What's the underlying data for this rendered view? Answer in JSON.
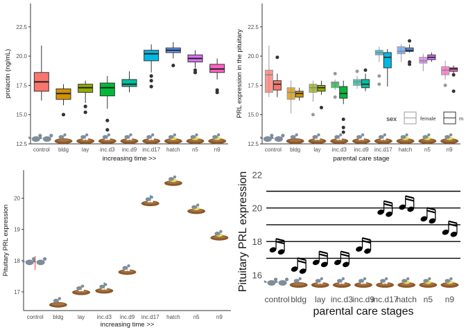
{
  "chart_data": [
    {
      "type": "box",
      "title": "",
      "xlabel": "increasing time >>",
      "ylabel": "prolactin (ng/mL)",
      "categories": [
        "control",
        "bldg",
        "lay",
        "inc.d3",
        "inc.d9",
        "inc.d17",
        "hatch",
        "n5",
        "n9"
      ],
      "ylim": [
        12.5,
        24.5
      ],
      "yticks": [
        12.5,
        15.0,
        17.5,
        20.0,
        22.5
      ],
      "yticklabels": [
        "12.5",
        "15.0",
        "17.5",
        "20.0",
        "22.5"
      ],
      "colors": [
        "#F8766D",
        "#D39200",
        "#93AA00",
        "#00BA38",
        "#00C19F",
        "#00B9E3",
        "#619CFF",
        "#DB72FB",
        "#FF61C3"
      ],
      "boxes": [
        {
          "q1": 17.0,
          "median": 17.8,
          "q3": 18.6,
          "whisker_low": 16.2,
          "whisker_high": 20.9,
          "outliers": []
        },
        {
          "q1": 16.3,
          "median": 16.8,
          "q3": 17.2,
          "whisker_low": 15.8,
          "whisker_high": 17.6,
          "outliers": [
            15.0
          ]
        },
        {
          "q1": 16.9,
          "median": 17.3,
          "q3": 17.6,
          "whisker_low": 16.0,
          "whisker_high": 17.9,
          "outliers": [
            15.7,
            15.2
          ]
        },
        {
          "q1": 16.6,
          "median": 17.3,
          "q3": 17.7,
          "whisker_low": 15.5,
          "whisker_high": 18.3,
          "outliers": [
            14.5,
            13.7
          ]
        },
        {
          "q1": 17.4,
          "median": 17.6,
          "q3": 18.0,
          "whisker_low": 16.9,
          "whisker_high": 18.7,
          "outliers": []
        },
        {
          "q1": 19.6,
          "median": 20.2,
          "q3": 20.5,
          "whisker_low": 18.6,
          "whisker_high": 21.0,
          "outliers": [
            18.3,
            17.9,
            17.4
          ]
        },
        {
          "q1": 20.3,
          "median": 20.5,
          "q3": 20.7,
          "whisker_low": 19.8,
          "whisker_high": 21.2,
          "outliers": [
            19.2
          ]
        },
        {
          "q1": 19.5,
          "median": 19.8,
          "q3": 20.1,
          "whisker_low": 19.0,
          "whisker_high": 20.5,
          "outliers": [
            18.8,
            18.6
          ]
        },
        {
          "q1": 18.6,
          "median": 18.9,
          "q3": 19.3,
          "whisker_low": 18.0,
          "whisker_high": 19.8,
          "outliers": [
            17.1,
            16.9
          ]
        }
      ]
    },
    {
      "type": "box",
      "title": "",
      "xlabel": "parental care stage",
      "ylabel": "PRL expression in the pituitary",
      "categories": [
        "control",
        "bldg",
        "lay",
        "inc.d3",
        "inc.d9",
        "inc.d17",
        "hatch",
        "n5",
        "n9"
      ],
      "ylim": [
        12.5,
        24.5
      ],
      "yticks": [
        12.5,
        15.0,
        17.5,
        20.0,
        22.5
      ],
      "yticklabels": [
        "12.5",
        "15.0",
        "17.5",
        "20.0",
        "22.5"
      ],
      "legend": {
        "title": "sex",
        "entries": [
          "female",
          "m"
        ],
        "position": "right"
      },
      "series": [
        {
          "name": "female",
          "boxes": [
            {
              "q1": 16.9,
              "median": 18.4,
              "q3": 18.8,
              "whisker_low": 16.5,
              "whisker_high": 20.9,
              "outliers": []
            },
            {
              "q1": 16.3,
              "median": 16.9,
              "q3": 17.3,
              "whisker_low": 15.1,
              "whisker_high": 17.9,
              "outliers": []
            },
            {
              "q1": 16.9,
              "median": 17.3,
              "q3": 17.6,
              "whisker_low": 16.1,
              "whisker_high": 17.9,
              "outliers": [
                15.0
              ]
            },
            {
              "q1": 17.3,
              "median": 17.7,
              "q3": 17.8,
              "whisker_low": 17.1,
              "whisker_high": 18.0,
              "outliers": [
                18.5,
                16.5
              ]
            },
            {
              "q1": 17.5,
              "median": 17.8,
              "q3": 18.0,
              "whisker_low": 17.2,
              "whisker_high": 18.3,
              "outliers": [
                18.7
              ]
            },
            {
              "q1": 20.1,
              "median": 20.3,
              "q3": 20.5,
              "whisker_low": 19.5,
              "whisker_high": 20.8,
              "outliers": [
                18.3,
                17.6
              ]
            },
            {
              "q1": 20.2,
              "median": 20.4,
              "q3": 20.8,
              "whisker_low": 19.5,
              "whisker_high": 21.0,
              "outliers": []
            },
            {
              "q1": 19.4,
              "median": 19.6,
              "q3": 19.9,
              "whisker_low": 18.7,
              "whisker_high": 20.2,
              "outliers": []
            },
            {
              "q1": 18.4,
              "median": 18.8,
              "q3": 19.1,
              "whisker_low": 18.0,
              "whisker_high": 19.6,
              "outliers": [
                17.5
              ]
            }
          ]
        },
        {
          "name": "m",
          "boxes": [
            {
              "q1": 17.1,
              "median": 17.6,
              "q3": 17.9,
              "whisker_low": 16.5,
              "whisker_high": 18.5,
              "outliers": [
                19.9
              ]
            },
            {
              "q1": 16.5,
              "median": 16.8,
              "q3": 17.0,
              "whisker_low": 16.2,
              "whisker_high": 17.3,
              "outliers": []
            },
            {
              "q1": 17.0,
              "median": 17.3,
              "q3": 17.5,
              "whisker_low": 16.7,
              "whisker_high": 17.9,
              "outliers": [
                15.6
              ]
            },
            {
              "q1": 16.4,
              "median": 16.8,
              "q3": 17.4,
              "whisker_low": 15.9,
              "whisker_high": 17.9,
              "outliers": [
                14.6,
                13.9,
                13.5
              ]
            },
            {
              "q1": 17.3,
              "median": 17.6,
              "q3": 18.0,
              "whisker_low": 17.0,
              "whisker_high": 18.5,
              "outliers": [
                18.8
              ]
            },
            {
              "q1": 19.0,
              "median": 19.9,
              "q3": 20.3,
              "whisker_low": 17.4,
              "whisker_high": 20.6,
              "outliers": []
            },
            {
              "q1": 20.4,
              "median": 20.5,
              "q3": 20.7,
              "whisker_low": 20.3,
              "whisker_high": 21.0,
              "outliers": [
                21.3,
                19.5,
                19.3
              ]
            },
            {
              "q1": 19.7,
              "median": 19.9,
              "q3": 20.1,
              "whisker_low": 19.5,
              "whisker_high": 20.3,
              "outliers": []
            },
            {
              "q1": 18.7,
              "median": 18.9,
              "q3": 19.0,
              "whisker_low": 18.4,
              "whisker_high": 19.2,
              "outliers": [
                18.4,
                17.0
              ]
            }
          ]
        }
      ]
    },
    {
      "type": "scatter",
      "title": "",
      "xlabel": "increasing time >>",
      "ylabel": "Pituitary PRL expression",
      "categories": [
        "control",
        "bldg",
        "lay",
        "inc.d3",
        "inc.d9",
        "inc.d17",
        "hatch",
        "n5",
        "n9"
      ],
      "ylim": [
        16.4,
        20.9
      ],
      "yticks": [
        17,
        18,
        19,
        20
      ],
      "yticklabels": [
        "17",
        "18",
        "19",
        "20"
      ],
      "values": [
        17.9,
        16.65,
        17.05,
        17.1,
        17.7,
        19.9,
        20.55,
        19.65,
        18.8
      ],
      "error_low": [
        17.7,
        16.6,
        16.95,
        16.95,
        17.65,
        19.75,
        20.5,
        19.6,
        18.7
      ],
      "error_high": [
        18.15,
        16.7,
        17.2,
        17.3,
        17.75,
        20.1,
        20.6,
        19.7,
        18.9
      ]
    },
    {
      "type": "scatter",
      "title": "",
      "xlabel": "parental care stages",
      "ylabel": "Pituitary PRL expression",
      "categories": [
        "control",
        "bldg",
        "lay",
        "inc.d3",
        "inc.d9",
        "inc.d17",
        "hatch",
        "n5",
        "n9"
      ],
      "ylim": [
        15.2,
        22.3
      ],
      "yticks": [
        16,
        18,
        20,
        22
      ],
      "yticklabels": [
        "16",
        "18",
        "20",
        "22"
      ],
      "staff_lines": [
        17,
        18,
        19,
        20,
        21
      ],
      "values": [
        17.75,
        16.6,
        17.0,
        17.0,
        17.8,
        20.0,
        20.3,
        19.6,
        18.8
      ],
      "grid": false
    }
  ],
  "colors": {
    "axis": "#333333",
    "tick_text": "#4d4d4d",
    "outlier": "#333333",
    "bird_body": "#7f8d9a",
    "nest": "#8b5a2b"
  }
}
